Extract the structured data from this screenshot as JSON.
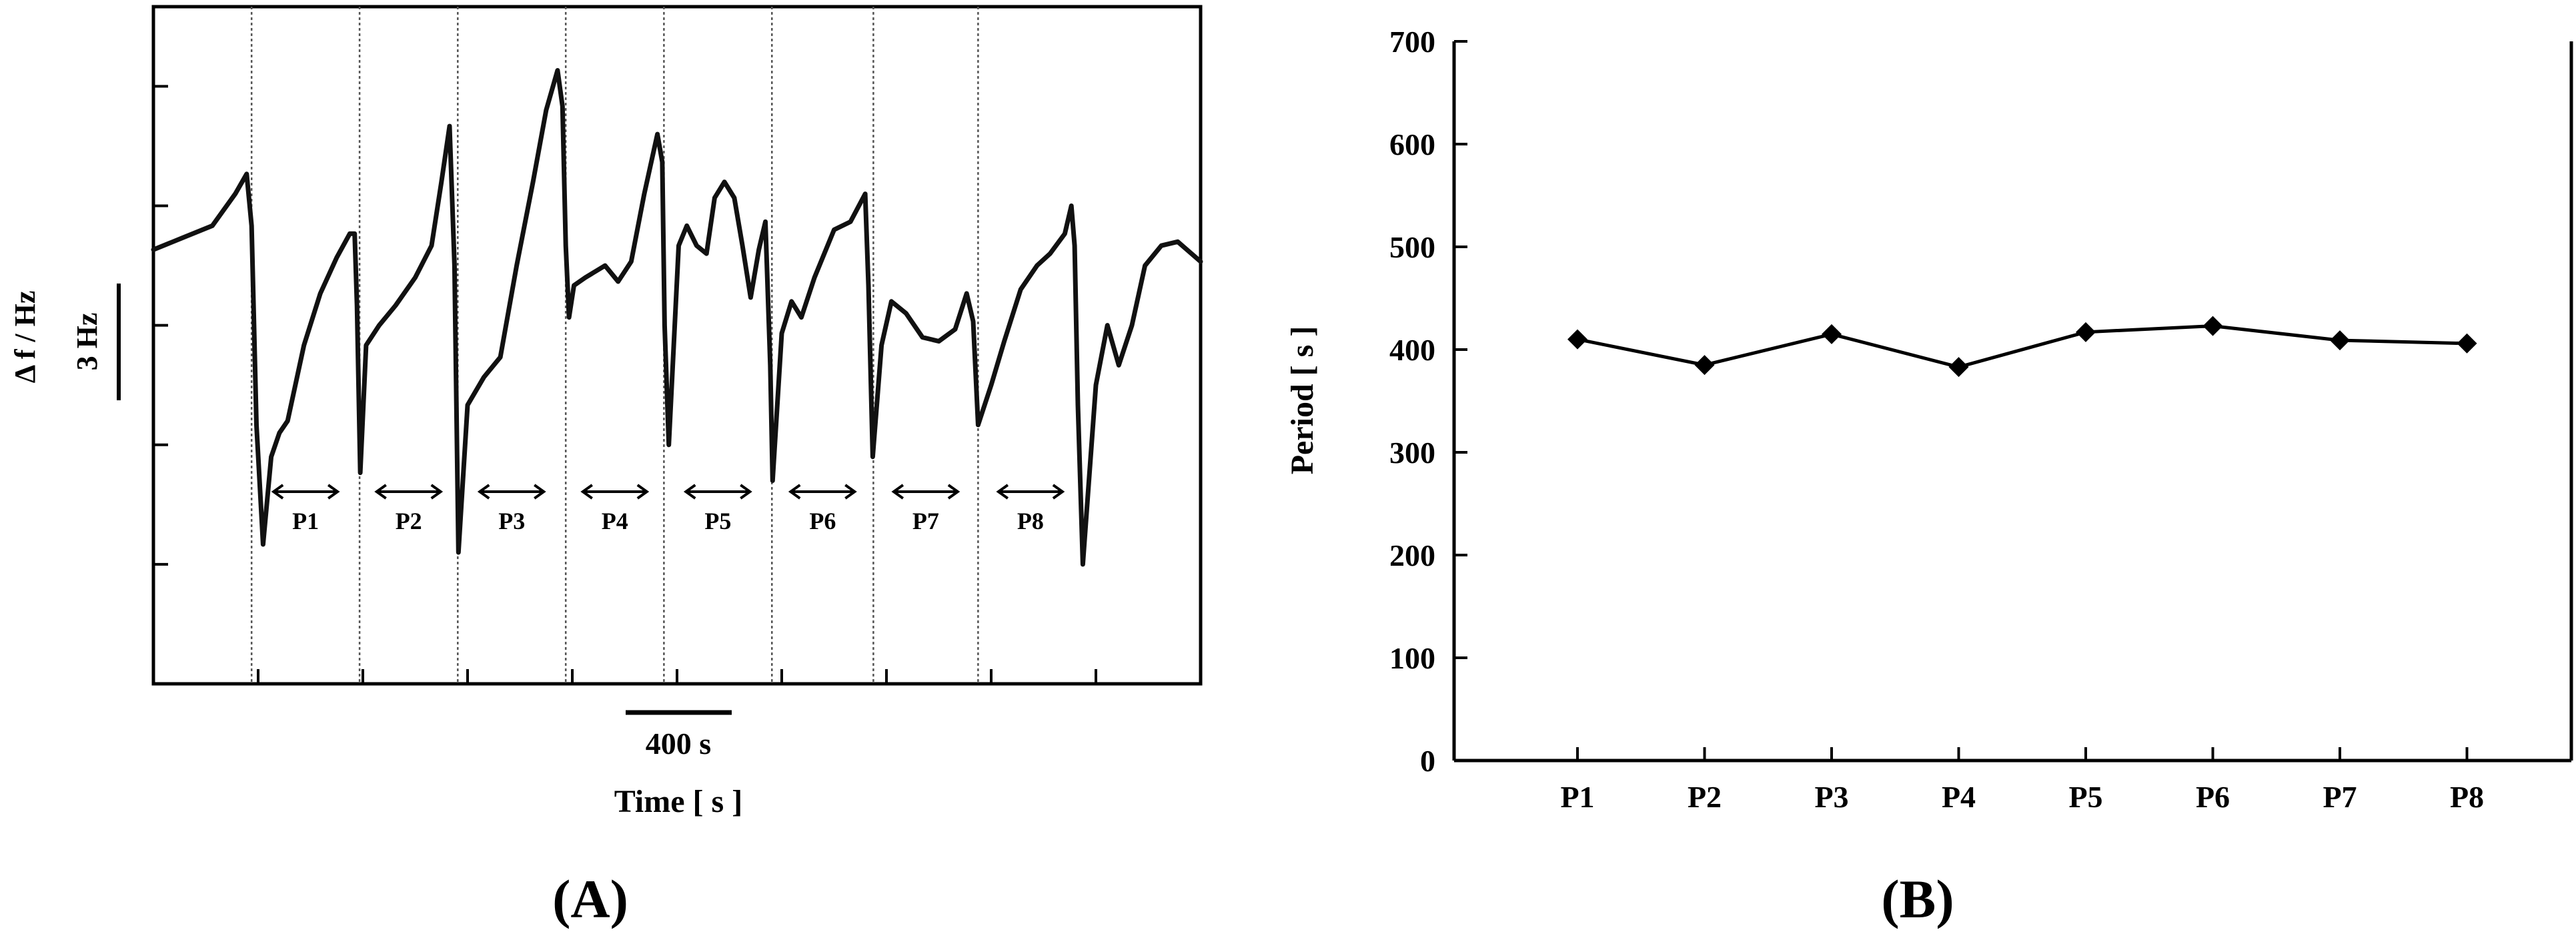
{
  "panels": {
    "a_label": "(A)",
    "b_label": "(B)"
  },
  "chart_data": [
    {
      "type": "line",
      "panel": "A",
      "xlabel": "Time [ s ]",
      "ylabel": "Δ f / Hz",
      "scale_bar_x": "400 s",
      "scale_bar_y": "3 Hz",
      "xlim": [
        0,
        3200
      ],
      "ylim": [
        0,
        17
      ],
      "period_boundaries": [
        300,
        630,
        930,
        1260,
        1560,
        1890,
        2200,
        2520
      ],
      "period_labels": [
        "P1",
        "P2",
        "P3",
        "P4",
        "P5",
        "P6",
        "P7",
        "P8"
      ],
      "series": [
        {
          "points": [
            [
              0,
              10.9
            ],
            [
              90,
              11.2
            ],
            [
              180,
              11.5
            ],
            [
              250,
              12.3
            ],
            [
              285,
              12.8
            ],
            [
              300,
              11.5
            ],
            [
              315,
              6.5
            ],
            [
              335,
              3.5
            ],
            [
              360,
              5.7
            ],
            [
              385,
              6.3
            ],
            [
              410,
              6.6
            ],
            [
              460,
              8.5
            ],
            [
              510,
              9.8
            ],
            [
              560,
              10.7
            ],
            [
              600,
              11.3
            ],
            [
              615,
              11.3
            ],
            [
              622,
              9.5
            ],
            [
              632,
              5.3
            ],
            [
              650,
              8.5
            ],
            [
              690,
              9.0
            ],
            [
              740,
              9.5
            ],
            [
              800,
              10.2
            ],
            [
              850,
              11.0
            ],
            [
              880,
              12.6
            ],
            [
              905,
              14.0
            ],
            [
              920,
              10.5
            ],
            [
              932,
              3.3
            ],
            [
              960,
              7.0
            ],
            [
              1010,
              7.7
            ],
            [
              1060,
              8.2
            ],
            [
              1110,
              10.5
            ],
            [
              1160,
              12.6
            ],
            [
              1200,
              14.4
            ],
            [
              1235,
              15.4
            ],
            [
              1250,
              14.5
            ],
            [
              1260,
              11.0
            ],
            [
              1270,
              9.2
            ],
            [
              1285,
              10.0
            ],
            [
              1320,
              10.2
            ],
            [
              1380,
              10.5
            ],
            [
              1420,
              10.1
            ],
            [
              1460,
              10.6
            ],
            [
              1500,
              12.3
            ],
            [
              1540,
              13.8
            ],
            [
              1555,
              13.1
            ],
            [
              1562,
              9.0
            ],
            [
              1575,
              6.0
            ],
            [
              1605,
              11.0
            ],
            [
              1630,
              11.5
            ],
            [
              1660,
              11.0
            ],
            [
              1690,
              10.8
            ],
            [
              1715,
              12.2
            ],
            [
              1745,
              12.6
            ],
            [
              1775,
              12.2
            ],
            [
              1800,
              11.0
            ],
            [
              1825,
              9.7
            ],
            [
              1850,
              10.9
            ],
            [
              1870,
              11.6
            ],
            [
              1885,
              8.0
            ],
            [
              1892,
              5.1
            ],
            [
              1920,
              8.8
            ],
            [
              1950,
              9.6
            ],
            [
              1980,
              9.2
            ],
            [
              2020,
              10.2
            ],
            [
              2080,
              11.4
            ],
            [
              2130,
              11.6
            ],
            [
              2175,
              12.3
            ],
            [
              2185,
              10.0
            ],
            [
              2198,
              5.7
            ],
            [
              2225,
              8.5
            ],
            [
              2255,
              9.6
            ],
            [
              2300,
              9.3
            ],
            [
              2350,
              8.7
            ],
            [
              2400,
              8.6
            ],
            [
              2450,
              8.9
            ],
            [
              2485,
              9.8
            ],
            [
              2505,
              9.1
            ],
            [
              2520,
              6.5
            ],
            [
              2560,
              7.5
            ],
            [
              2600,
              8.6
            ],
            [
              2650,
              9.9
            ],
            [
              2700,
              10.5
            ],
            [
              2740,
              10.8
            ],
            [
              2785,
              11.3
            ],
            [
              2805,
              12.0
            ],
            [
              2815,
              11.0
            ],
            [
              2825,
              7.0
            ],
            [
              2840,
              3.0
            ],
            [
              2880,
              7.5
            ],
            [
              2915,
              9.0
            ],
            [
              2950,
              8.0
            ],
            [
              2990,
              9.0
            ],
            [
              3030,
              10.5
            ],
            [
              3080,
              11.0
            ],
            [
              3130,
              11.1
            ],
            [
              3200,
              10.6
            ]
          ]
        }
      ]
    },
    {
      "type": "line",
      "panel": "B",
      "categories": [
        "P1",
        "P2",
        "P3",
        "P4",
        "P5",
        "P6",
        "P7",
        "P8"
      ],
      "values": [
        410,
        385,
        415,
        383,
        417,
        423,
        409,
        406
      ],
      "ylabel": "Period [ s ]",
      "xlabel": "",
      "ylim": [
        0,
        700
      ],
      "yticks": [
        0,
        100,
        200,
        300,
        400,
        500,
        600,
        700
      ],
      "marker": "diamond",
      "grid": false
    }
  ]
}
